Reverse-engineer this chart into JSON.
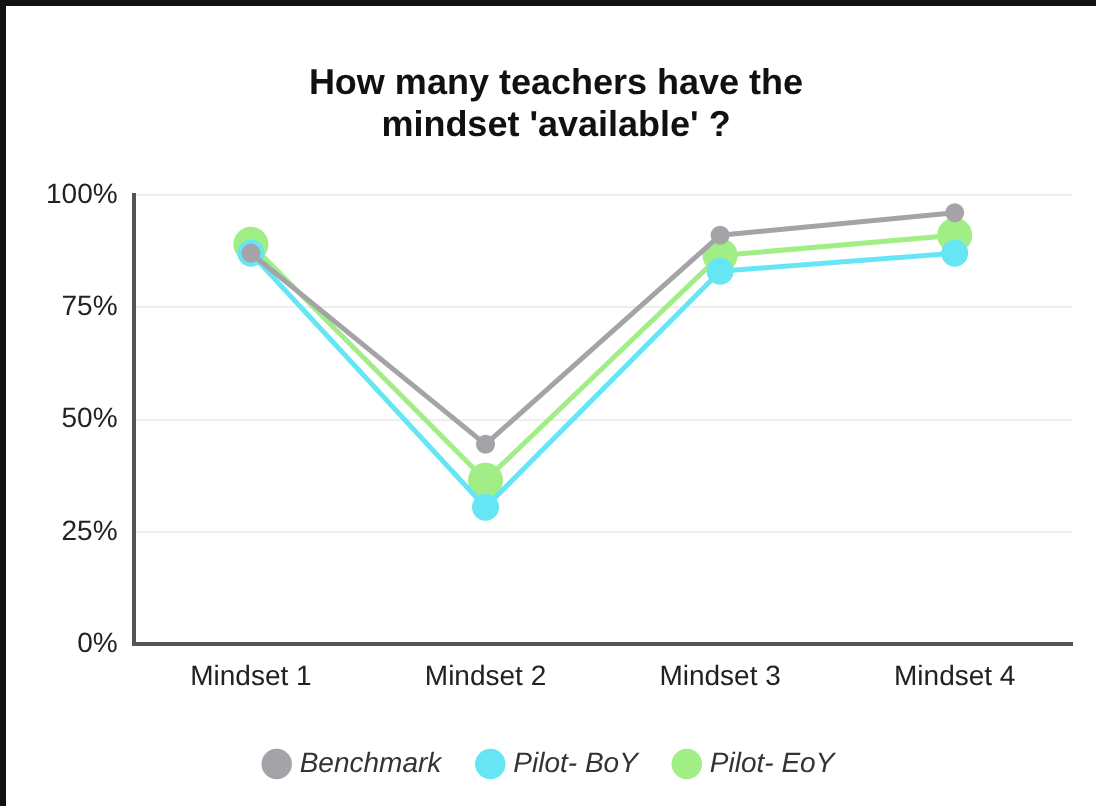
{
  "chart_data": {
    "type": "line",
    "title": "How many teachers have the mindset 'available' ?",
    "categories": [
      "Mindset 1",
      "Mindset 2",
      "Mindset 3",
      "Mindset 4"
    ],
    "series": [
      {
        "name": "Benchmark",
        "color": "#a4a4a8",
        "values": [
          87,
          44.5,
          91,
          96
        ]
      },
      {
        "name": "Pilot- BoY",
        "color": "#66e6f5",
        "values": [
          87,
          30.5,
          83,
          87
        ]
      },
      {
        "name": "Pilot- EoY",
        "color": "#a2ee86",
        "values": [
          89,
          36.5,
          86.5,
          91
        ]
      }
    ],
    "ylim": [
      0,
      100
    ],
    "yticks": [
      {
        "value": 0,
        "label": "0%"
      },
      {
        "value": 25,
        "label": "25%"
      },
      {
        "value": 50,
        "label": "50%"
      },
      {
        "value": 75,
        "label": "75%"
      },
      {
        "value": 100,
        "label": "100%"
      }
    ],
    "grid": "y",
    "legend": "bottom",
    "marker": "circle",
    "line_style": "solid"
  }
}
